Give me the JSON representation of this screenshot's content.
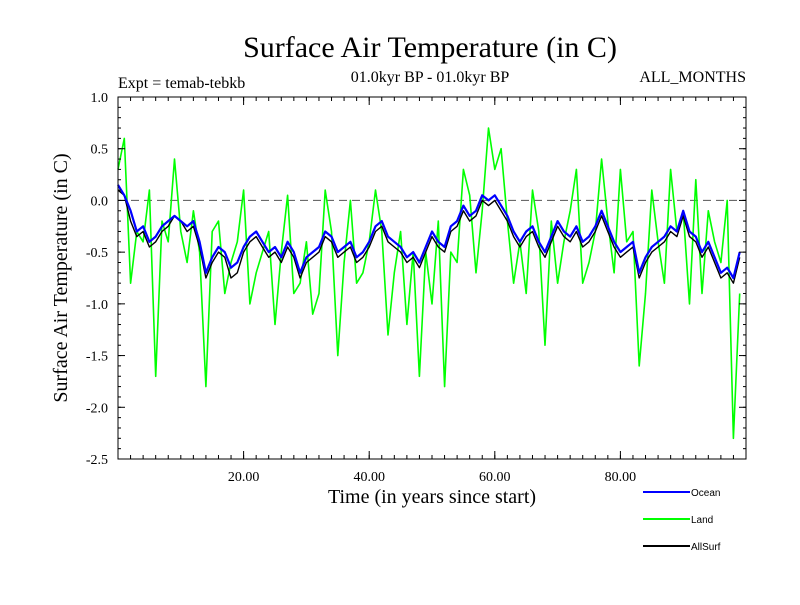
{
  "chart_data": {
    "type": "line",
    "title": "Surface Air Temperature (in C)",
    "subtitle_left": "Expt = temab-tebkb",
    "subtitle_center": "01.0kyr BP - 01.0kyr BP",
    "subtitle_right": "ALL_MONTHS",
    "xlabel": "Time (in years since start)",
    "ylabel": "Surface Air Temperature (in C)",
    "xlim": [
      0,
      100
    ],
    "ylim": [
      -2.5,
      1.0
    ],
    "x_ticks": [
      20,
      40,
      60,
      80
    ],
    "x_tick_labels": [
      "20.00",
      "40.00",
      "60.00",
      "80.00"
    ],
    "y_ticks": [
      1.0,
      0.5,
      0.0,
      -0.5,
      -1.0,
      -1.5,
      -2.0,
      -2.5
    ],
    "y_tick_labels": [
      "1.0",
      "0.5",
      "0.0",
      "-0.5",
      "-1.0",
      "-1.5",
      "-2.0",
      "-2.5"
    ],
    "reference_line": 0.0,
    "series": [
      {
        "name": "Land",
        "color": "#00ff00",
        "x": [
          0,
          1,
          2,
          3,
          4,
          5,
          6,
          7,
          8,
          9,
          10,
          11,
          12,
          13,
          14,
          15,
          16,
          17,
          18,
          19,
          20,
          21,
          22,
          23,
          24,
          25,
          26,
          27,
          28,
          29,
          30,
          31,
          32,
          33,
          34,
          35,
          36,
          37,
          38,
          39,
          40,
          41,
          42,
          43,
          44,
          45,
          46,
          47,
          48,
          49,
          50,
          51,
          52,
          53,
          54,
          55,
          56,
          57,
          58,
          59,
          60,
          61,
          62,
          63,
          64,
          65,
          66,
          67,
          68,
          69,
          70,
          71,
          72,
          73,
          74,
          75,
          76,
          77,
          78,
          79,
          80,
          81,
          82,
          83,
          84,
          85,
          86,
          87,
          88,
          89,
          90,
          91,
          92,
          93,
          94,
          95,
          96,
          97,
          98,
          99
        ],
        "values": [
          0.3,
          0.6,
          -0.8,
          -0.3,
          -0.4,
          0.1,
          -1.7,
          -0.2,
          -0.4,
          0.4,
          -0.3,
          -0.6,
          -0.1,
          -0.5,
          -1.8,
          -0.3,
          -0.2,
          -0.9,
          -0.6,
          -0.4,
          0.1,
          -1.0,
          -0.7,
          -0.5,
          -0.3,
          -1.2,
          -0.5,
          0.05,
          -0.9,
          -0.8,
          -0.4,
          -1.1,
          -0.9,
          0.1,
          -0.3,
          -1.5,
          -0.6,
          0.0,
          -0.8,
          -0.7,
          -0.4,
          0.1,
          -0.3,
          -1.3,
          -0.7,
          -0.3,
          -1.2,
          -0.5,
          -1.7,
          -0.5,
          -1.0,
          -0.2,
          -1.8,
          -0.5,
          -0.6,
          0.3,
          0.05,
          -0.7,
          -0.1,
          0.7,
          0.3,
          0.5,
          -0.2,
          -0.8,
          -0.4,
          -0.9,
          0.1,
          -0.3,
          -1.4,
          -0.2,
          -0.8,
          -0.4,
          -0.1,
          0.3,
          -0.8,
          -0.6,
          -0.3,
          0.4,
          -0.2,
          -0.7,
          0.3,
          -0.4,
          -0.3,
          -1.6,
          -0.9,
          0.1,
          -0.4,
          -0.8,
          0.3,
          -0.3,
          -0.1,
          -1.0,
          0.2,
          -0.9,
          -0.1,
          -0.4,
          -0.6,
          0.0,
          -2.3,
          -0.9
        ]
      },
      {
        "name": "AllSurf",
        "color": "#000000",
        "x": [
          0,
          1,
          2,
          3,
          4,
          5,
          6,
          7,
          8,
          9,
          10,
          11,
          12,
          13,
          14,
          15,
          16,
          17,
          18,
          19,
          20,
          21,
          22,
          23,
          24,
          25,
          26,
          27,
          28,
          29,
          30,
          31,
          32,
          33,
          34,
          35,
          36,
          37,
          38,
          39,
          40,
          41,
          42,
          43,
          44,
          45,
          46,
          47,
          48,
          49,
          50,
          51,
          52,
          53,
          54,
          55,
          56,
          57,
          58,
          59,
          60,
          61,
          62,
          63,
          64,
          65,
          66,
          67,
          68,
          69,
          70,
          71,
          72,
          73,
          74,
          75,
          76,
          77,
          78,
          79,
          80,
          81,
          82,
          83,
          84,
          85,
          86,
          87,
          88,
          89,
          90,
          91,
          92,
          93,
          94,
          95,
          96,
          97,
          98,
          99
        ],
        "values": [
          0.1,
          0.05,
          -0.2,
          -0.35,
          -0.3,
          -0.45,
          -0.4,
          -0.3,
          -0.25,
          -0.15,
          -0.2,
          -0.3,
          -0.25,
          -0.45,
          -0.75,
          -0.6,
          -0.5,
          -0.55,
          -0.75,
          -0.7,
          -0.5,
          -0.4,
          -0.35,
          -0.45,
          -0.55,
          -0.5,
          -0.6,
          -0.45,
          -0.55,
          -0.75,
          -0.6,
          -0.55,
          -0.5,
          -0.35,
          -0.4,
          -0.55,
          -0.5,
          -0.45,
          -0.6,
          -0.55,
          -0.45,
          -0.3,
          -0.25,
          -0.4,
          -0.45,
          -0.5,
          -0.6,
          -0.55,
          -0.65,
          -0.5,
          -0.35,
          -0.45,
          -0.5,
          -0.3,
          -0.25,
          -0.1,
          -0.2,
          -0.15,
          0.0,
          -0.05,
          0.0,
          -0.1,
          -0.2,
          -0.35,
          -0.45,
          -0.35,
          -0.3,
          -0.45,
          -0.55,
          -0.4,
          -0.25,
          -0.35,
          -0.4,
          -0.3,
          -0.45,
          -0.4,
          -0.3,
          -0.15,
          -0.3,
          -0.45,
          -0.55,
          -0.5,
          -0.45,
          -0.75,
          -0.6,
          -0.5,
          -0.45,
          -0.4,
          -0.3,
          -0.35,
          -0.15,
          -0.35,
          -0.4,
          -0.55,
          -0.45,
          -0.6,
          -0.75,
          -0.7,
          -0.8,
          -0.55
        ]
      },
      {
        "name": "Ocean",
        "color": "#0000ff",
        "x": [
          0,
          1,
          2,
          3,
          4,
          5,
          6,
          7,
          8,
          9,
          10,
          11,
          12,
          13,
          14,
          15,
          16,
          17,
          18,
          19,
          20,
          21,
          22,
          23,
          24,
          25,
          26,
          27,
          28,
          29,
          30,
          31,
          32,
          33,
          34,
          35,
          36,
          37,
          38,
          39,
          40,
          41,
          42,
          43,
          44,
          45,
          46,
          47,
          48,
          49,
          50,
          51,
          52,
          53,
          54,
          55,
          56,
          57,
          58,
          59,
          60,
          61,
          62,
          63,
          64,
          65,
          66,
          67,
          68,
          69,
          70,
          71,
          72,
          73,
          74,
          75,
          76,
          77,
          78,
          79,
          80,
          81,
          82,
          83,
          84,
          85,
          86,
          87,
          88,
          89,
          90,
          91,
          92,
          93,
          94,
          95,
          96,
          97,
          98,
          99
        ],
        "values": [
          0.15,
          0.05,
          -0.1,
          -0.3,
          -0.25,
          -0.4,
          -0.35,
          -0.25,
          -0.2,
          -0.15,
          -0.2,
          -0.25,
          -0.2,
          -0.4,
          -0.7,
          -0.55,
          -0.45,
          -0.5,
          -0.65,
          -0.6,
          -0.45,
          -0.35,
          -0.3,
          -0.4,
          -0.5,
          -0.45,
          -0.55,
          -0.4,
          -0.5,
          -0.7,
          -0.55,
          -0.5,
          -0.45,
          -0.3,
          -0.35,
          -0.5,
          -0.45,
          -0.4,
          -0.55,
          -0.5,
          -0.4,
          -0.25,
          -0.2,
          -0.35,
          -0.4,
          -0.45,
          -0.55,
          -0.5,
          -0.6,
          -0.45,
          -0.3,
          -0.4,
          -0.45,
          -0.25,
          -0.2,
          -0.05,
          -0.15,
          -0.1,
          0.05,
          0.0,
          0.05,
          -0.05,
          -0.15,
          -0.3,
          -0.4,
          -0.3,
          -0.25,
          -0.4,
          -0.5,
          -0.35,
          -0.2,
          -0.3,
          -0.35,
          -0.25,
          -0.4,
          -0.35,
          -0.25,
          -0.1,
          -0.25,
          -0.4,
          -0.5,
          -0.45,
          -0.4,
          -0.7,
          -0.55,
          -0.45,
          -0.4,
          -0.35,
          -0.25,
          -0.3,
          -0.1,
          -0.3,
          -0.35,
          -0.5,
          -0.4,
          -0.55,
          -0.7,
          -0.65,
          -0.75,
          -0.5
        ]
      }
    ],
    "legend": {
      "placement": "below-right",
      "order": [
        "Ocean",
        "Land",
        "AllSurf"
      ]
    }
  }
}
